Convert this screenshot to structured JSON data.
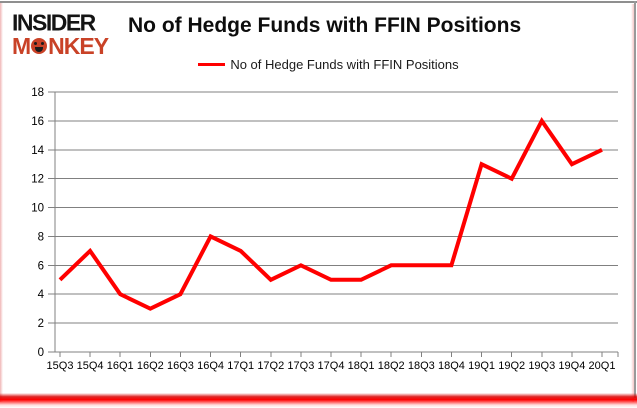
{
  "logo": {
    "line1": "INSIDER",
    "line2_m": "M",
    "line2_rest": "NKEY",
    "color_black": "#141414",
    "color_red": "#c94227"
  },
  "header": {
    "title": "No of Hedge Funds with FFIN Positions"
  },
  "legend": {
    "label": "No of Hedge Funds with FFIN Positions",
    "line_color": "#ff0000"
  },
  "chart_data": {
    "type": "line",
    "title": "No of Hedge Funds with FFIN Positions",
    "categories": [
      "15Q3",
      "15Q4",
      "16Q1",
      "16Q2",
      "16Q3",
      "16Q4",
      "17Q1",
      "17Q2",
      "17Q3",
      "17Q4",
      "18Q1",
      "18Q2",
      "18Q3",
      "18Q4",
      "19Q1",
      "19Q2",
      "19Q3",
      "19Q4",
      "20Q1"
    ],
    "series": [
      {
        "name": "No of Hedge Funds with FFIN Positions",
        "values": [
          5,
          7,
          4,
          3,
          4,
          8,
          7,
          5,
          6,
          5,
          5,
          6,
          6,
          6,
          13,
          12,
          16,
          13,
          14
        ],
        "color": "#ff0000"
      }
    ],
    "xlabel": "",
    "ylabel": "",
    "ylim": [
      0,
      18
    ],
    "ytick_step": 2,
    "grid": "horizontal",
    "legend_position": "top"
  },
  "colors": {
    "gridline": "#808080",
    "axis_text": "#000000",
    "background": "#ffffff",
    "bottom_border": "#ff0000"
  }
}
